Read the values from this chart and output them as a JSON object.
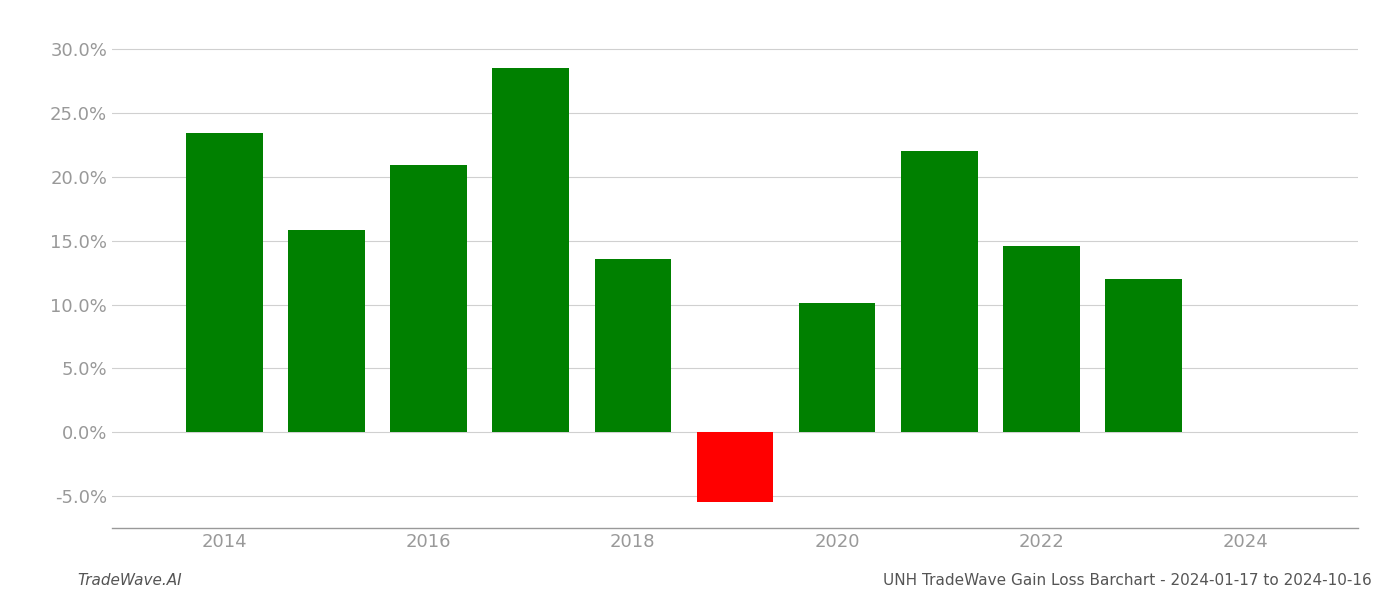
{
  "years": [
    2014,
    2015,
    2016,
    2017,
    2018,
    2019,
    2020,
    2021,
    2022,
    2023
  ],
  "values": [
    0.234,
    0.158,
    0.209,
    0.285,
    0.136,
    -0.055,
    0.101,
    0.22,
    0.146,
    0.12
  ],
  "colors": [
    "#008000",
    "#008000",
    "#008000",
    "#008000",
    "#008000",
    "#ff0000",
    "#008000",
    "#008000",
    "#008000",
    "#008000"
  ],
  "ylim": [
    -0.075,
    0.315
  ],
  "yticks": [
    -0.05,
    0.0,
    0.05,
    0.1,
    0.15,
    0.2,
    0.25,
    0.3
  ],
  "xticks": [
    2014,
    2016,
    2018,
    2020,
    2022,
    2024
  ],
  "xlim": [
    2012.9,
    2025.1
  ],
  "footer_left": "TradeWave.AI",
  "footer_right": "UNH TradeWave Gain Loss Barchart - 2024-01-17 to 2024-10-16",
  "background_color": "#ffffff",
  "bar_width": 0.75,
  "grid_color": "#d0d0d0",
  "tick_color": "#999999",
  "footer_color_left": "#555555",
  "footer_color_right": "#555555"
}
